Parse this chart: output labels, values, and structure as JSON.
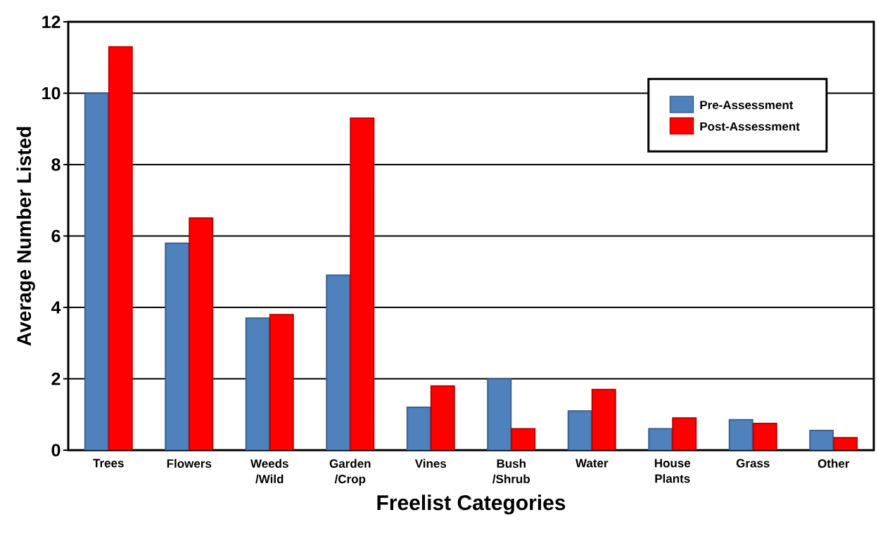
{
  "chart_data": {
    "type": "bar",
    "xlabel": "Freelist Categories",
    "ylabel": "Average Number Listed",
    "categories": [
      "Trees",
      "Flowers",
      "Weeds /Wild",
      "Garden /Crop",
      "Vines",
      "Bush /Shrub",
      "Water",
      "House Plants",
      "Grass",
      "Other"
    ],
    "series": [
      {
        "name": "Pre-Assessment",
        "color": "#4f81bd",
        "values": [
          10.0,
          5.8,
          3.7,
          4.9,
          1.2,
          2.0,
          1.1,
          0.6,
          0.85,
          0.55
        ]
      },
      {
        "name": "Post-Assessment",
        "color": "#ff0000",
        "values": [
          11.3,
          6.5,
          3.8,
          9.3,
          1.8,
          0.6,
          1.7,
          0.9,
          0.75,
          0.35
        ]
      }
    ],
    "ylim": [
      0,
      12
    ],
    "yticks": [
      0,
      2,
      4,
      6,
      8,
      10,
      12
    ],
    "grid": "y",
    "legend": "top right"
  }
}
